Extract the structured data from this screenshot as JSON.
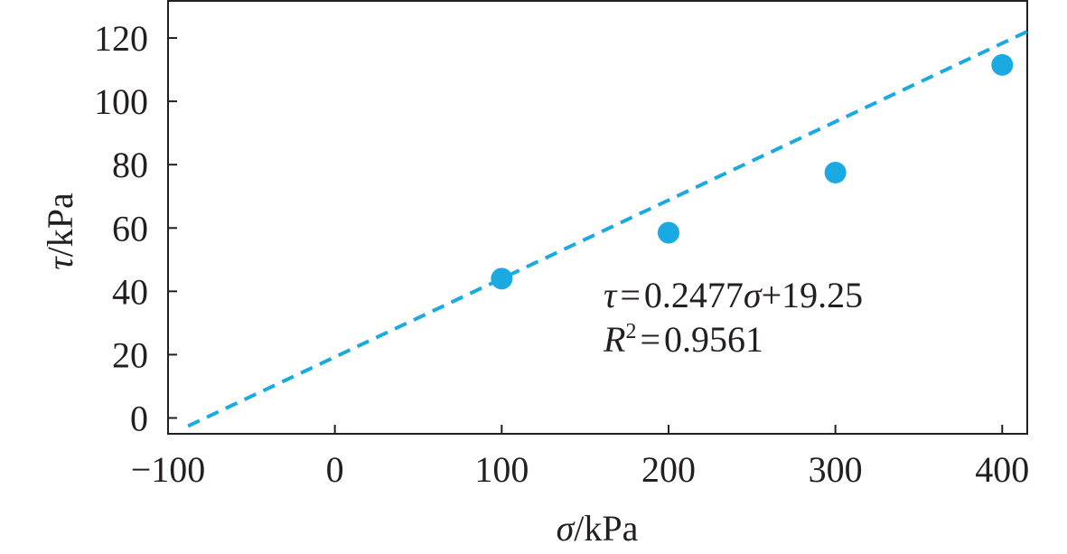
{
  "chart_data": {
    "type": "scatter",
    "title": "",
    "xlabel": {
      "symbol": "σ",
      "unit": "/kPa"
    },
    "ylabel": {
      "symbol": "τ",
      "unit": "/kPa"
    },
    "xlim": [
      -100,
      415
    ],
    "ylim": [
      -5,
      132
    ],
    "x_ticks": [
      -100,
      0,
      100,
      200,
      300,
      400
    ],
    "x_tick_labels": [
      "−100",
      "0",
      "100",
      "200",
      "300",
      "400"
    ],
    "y_ticks": [
      0,
      20,
      40,
      60,
      80,
      100,
      120
    ],
    "y_tick_labels": [
      "0",
      "20",
      "40",
      "60",
      "80",
      "100",
      "120"
    ],
    "series": [
      {
        "type": "scatter",
        "color": "#1ba9e1",
        "points": [
          {
            "x": 100,
            "y": 44
          },
          {
            "x": 200,
            "y": 58.5
          },
          {
            "x": 300,
            "y": 77.5
          },
          {
            "x": 400,
            "y": 111.5
          }
        ]
      },
      {
        "type": "line",
        "style": "dashed",
        "color": "#1ba9e1",
        "slope": 0.2477,
        "intercept": 19.25,
        "x_range": [
          -88,
          415
        ]
      }
    ],
    "annotations": {
      "equation": {
        "lhs": "τ",
        "eq": "=",
        "coef": "0.2477",
        "var": "σ",
        "rest": "+19.25"
      },
      "r2": {
        "lhs": "R",
        "sup": "2",
        "eq": "=",
        "value": "0.9561"
      }
    },
    "grid": false,
    "legend": "none"
  }
}
